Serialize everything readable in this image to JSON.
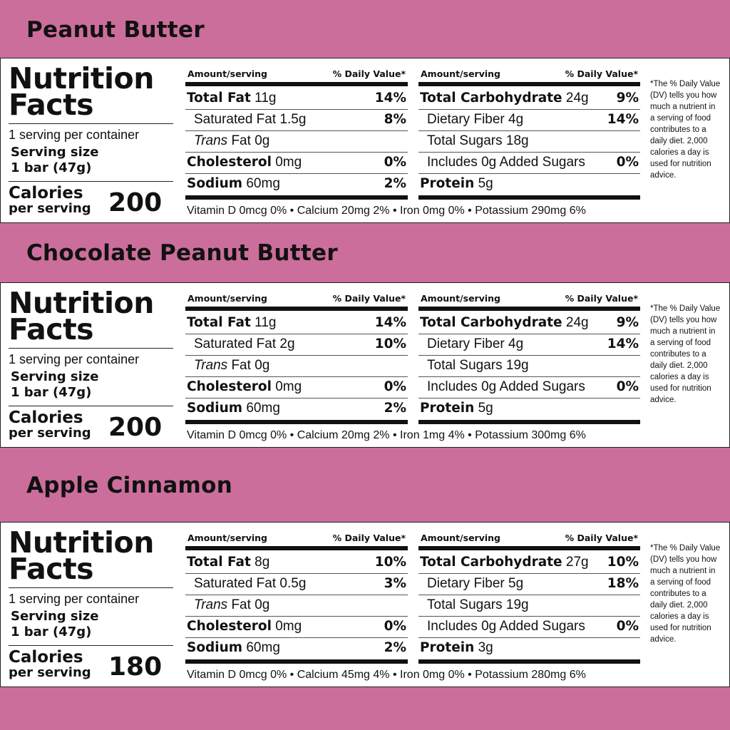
{
  "labels": {
    "nutrition": "Nutrition",
    "facts": "Facts",
    "serving_size_label": "Serving size",
    "calories": "Calories",
    "per_serving": "per serving",
    "amount_serving": "Amount/serving",
    "daily_value": "% Daily Value*",
    "total_fat": "Total Fat",
    "saturated_fat": "Saturated Fat",
    "trans": "Trans",
    "fat": "Fat",
    "cholesterol": "Cholesterol",
    "sodium": "Sodium",
    "total_carbohydrate": "Total Carbohydrate",
    "dietary_fiber": "Dietary Fiber",
    "total_sugars": "Total Sugars",
    "includes": "Includes",
    "added_sugars": "Added Sugars",
    "protein": "Protein",
    "dv_note": "*The % Daily Value (DV) tells you how much a nutrient in a serving of food contributes to a daily diet. 2,000 calories a day is used for nutrition advice."
  },
  "products": [
    {
      "flavor": "Peanut Butter",
      "servings_per_container": "1 serving per container",
      "serving_size": "1 bar (47g)",
      "calories": "200",
      "total_fat": "11g",
      "total_fat_dv": "14%",
      "saturated_fat": "1.5g",
      "saturated_fat_dv": "8%",
      "trans_fat": "0g",
      "cholesterol": "0mg",
      "cholesterol_dv": "0%",
      "sodium": "60mg",
      "sodium_dv": "2%",
      "total_carbohydrate": "24g",
      "total_carbohydrate_dv": "9%",
      "dietary_fiber": "4g",
      "dietary_fiber_dv": "14%",
      "total_sugars": "18g",
      "added_sugars": "0g",
      "added_sugars_dv": "0%",
      "protein": "5g",
      "vitamins": "Vitamin D 0mcg 0% • Calcium 20mg 2% • Iron 0mg 0% • Potassium 290mg 6%"
    },
    {
      "flavor": "Chocolate Peanut Butter",
      "servings_per_container": "1 serving per container",
      "serving_size": "1 bar (47g)",
      "calories": "200",
      "total_fat": "11g",
      "total_fat_dv": "14%",
      "saturated_fat": "2g",
      "saturated_fat_dv": "10%",
      "trans_fat": "0g",
      "cholesterol": "0mg",
      "cholesterol_dv": "0%",
      "sodium": "60mg",
      "sodium_dv": "2%",
      "total_carbohydrate": "24g",
      "total_carbohydrate_dv": "9%",
      "dietary_fiber": "4g",
      "dietary_fiber_dv": "14%",
      "total_sugars": "19g",
      "added_sugars": "0g",
      "added_sugars_dv": "0%",
      "protein": "5g",
      "vitamins": "Vitamin D 0mcg 0% • Calcium 20mg 2% • Iron 1mg 4% • Potassium 300mg 6%"
    },
    {
      "flavor": "Apple Cinnamon",
      "servings_per_container": "1 serving per container",
      "serving_size": "1 bar (47g)",
      "calories": "180",
      "total_fat": "8g",
      "total_fat_dv": "10%",
      "saturated_fat": "0.5g",
      "saturated_fat_dv": "3%",
      "trans_fat": "0g",
      "cholesterol": "0mg",
      "cholesterol_dv": "0%",
      "sodium": "60mg",
      "sodium_dv": "2%",
      "total_carbohydrate": "27g",
      "total_carbohydrate_dv": "10%",
      "dietary_fiber": "5g",
      "dietary_fiber_dv": "18%",
      "total_sugars": "19g",
      "added_sugars": "0g",
      "added_sugars_dv": "0%",
      "protein": "3g",
      "vitamins": "Vitamin D 0mcg 0% • Calcium 45mg 4% • Iron 0mg 0% • Potassium 280mg 6%"
    }
  ]
}
